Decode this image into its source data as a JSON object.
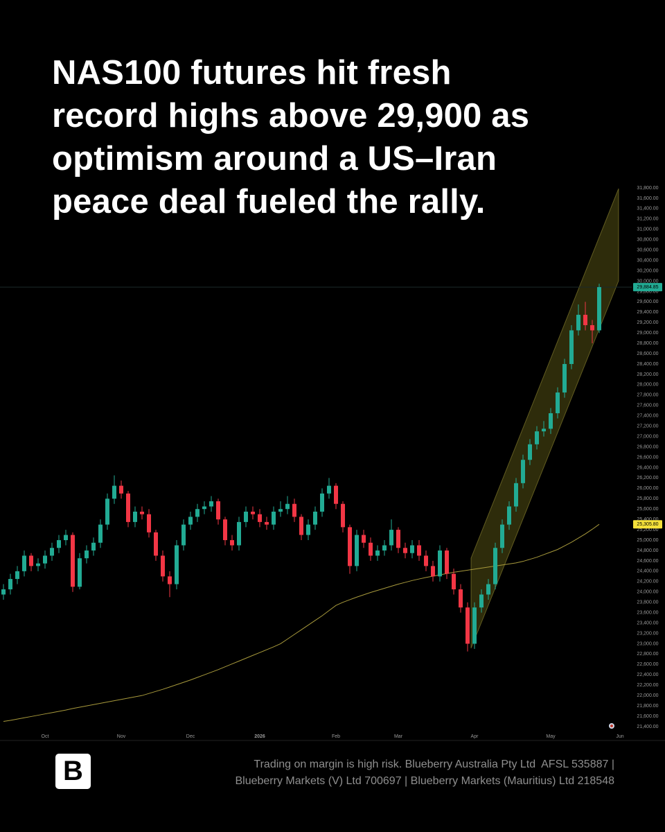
{
  "chart_data": {
    "type": "candlestick",
    "title": [
      "NAS100 futures hit fresh",
      "record highs above 29,900 as",
      "optimism around a US–Iran",
      "peace deal fueled the rally."
    ],
    "categories": [
      null,
      null,
      null,
      null,
      null,
      null,
      "Oct",
      null,
      null,
      null,
      null,
      null,
      null,
      null,
      null,
      null,
      null,
      "Nov",
      null,
      null,
      null,
      null,
      null,
      null,
      null,
      null,
      null,
      "Dec",
      null,
      null,
      null,
      null,
      null,
      null,
      null,
      null,
      null,
      "2026",
      null,
      null,
      null,
      null,
      null,
      null,
      null,
      null,
      null,
      null,
      "Feb",
      null,
      null,
      null,
      null,
      null,
      null,
      null,
      null,
      "Mar",
      null,
      null,
      null,
      null,
      null,
      null,
      null,
      null,
      null,
      null,
      "Apr",
      null,
      null,
      null,
      null,
      null,
      null,
      null,
      null,
      null,
      null,
      "May",
      null,
      null,
      null,
      null,
      null,
      null,
      null,
      null,
      null,
      "Jun"
    ],
    "series": [
      {
        "up_color": "#22ab94",
        "down_color": "#f23645",
        "open": [
          23950,
          24050,
          24250,
          24400,
          24700,
          24500,
          24550,
          24700,
          24850,
          25000,
          25100,
          24100,
          24650,
          24800,
          24950,
          25300,
          25800,
          26050,
          25900,
          25350,
          25550,
          25500,
          25150,
          24700,
          24300,
          24150,
          24900,
          25300,
          25450,
          25600,
          25650,
          25750,
          25400,
          25000,
          24900,
          25350,
          25550,
          25500,
          25350,
          25300,
          25550,
          25600,
          25700,
          25450,
          25100,
          25300,
          25550,
          25900,
          26050,
          25700,
          25250,
          24500,
          25100,
          24950,
          24700,
          24800,
          24900,
          25200,
          24850,
          24750,
          24900,
          24700,
          24500,
          24300,
          24800,
          24350,
          24050,
          23700,
          23000,
          23700,
          23950,
          24150,
          24850,
          25300,
          25650,
          26100,
          26550,
          26850,
          27100,
          27150,
          27450,
          27850,
          28400,
          29050,
          29350,
          29150,
          29050,
          null,
          null,
          null
        ],
        "high": [
          24150,
          24350,
          24500,
          24800,
          24750,
          24650,
          24800,
          24950,
          25100,
          25200,
          25150,
          24750,
          24900,
          25050,
          25400,
          25900,
          26250,
          26150,
          25950,
          25650,
          25650,
          25600,
          25200,
          24800,
          24400,
          25000,
          25400,
          25550,
          25700,
          25750,
          25850,
          25800,
          25450,
          25100,
          25450,
          25650,
          25650,
          25600,
          25450,
          25650,
          25750,
          25850,
          25800,
          25500,
          25400,
          25650,
          26000,
          26200,
          26100,
          25750,
          25300,
          25200,
          25200,
          25050,
          24900,
          25000,
          25400,
          25250,
          24950,
          25000,
          25000,
          24800,
          24600,
          24900,
          24850,
          24450,
          24150,
          23800,
          23800,
          24050,
          24250,
          24950,
          25400,
          25750,
          26200,
          26650,
          26950,
          27200,
          27300,
          27550,
          27950,
          28500,
          29150,
          29550,
          29600,
          29250,
          29950,
          null,
          null,
          null
        ],
        "low": [
          23850,
          23950,
          24150,
          24300,
          24400,
          24400,
          24450,
          24600,
          24750,
          24900,
          24000,
          24050,
          24550,
          24700,
          24850,
          25200,
          25700,
          25800,
          25250,
          25250,
          25400,
          25050,
          24600,
          24200,
          23900,
          24050,
          24800,
          25200,
          25350,
          25500,
          25550,
          25300,
          24900,
          24800,
          24800,
          25250,
          25400,
          25250,
          25200,
          25200,
          25450,
          25500,
          25350,
          25000,
          25000,
          25200,
          25450,
          25800,
          25600,
          25150,
          24350,
          24400,
          24850,
          24600,
          24600,
          24700,
          24800,
          24750,
          24650,
          24650,
          24600,
          24400,
          24200,
          24200,
          24250,
          23950,
          23600,
          22850,
          22900,
          23600,
          23850,
          24050,
          24750,
          25200,
          25550,
          26000,
          26450,
          26750,
          27000,
          27050,
          27350,
          27750,
          28300,
          28950,
          29050,
          28800,
          29000,
          null,
          null,
          null
        ],
        "close": [
          24050,
          24250,
          24400,
          24700,
          24500,
          24550,
          24700,
          24850,
          25000,
          25100,
          24100,
          24650,
          24800,
          24950,
          25300,
          25800,
          26050,
          25900,
          25350,
          25550,
          25500,
          25150,
          24700,
          24300,
          24150,
          24900,
          25300,
          25450,
          25600,
          25650,
          25750,
          25400,
          25000,
          24900,
          25350,
          25550,
          25500,
          25350,
          25300,
          25550,
          25600,
          25700,
          25450,
          25100,
          25300,
          25550,
          25900,
          26050,
          25700,
          25250,
          24500,
          25100,
          24950,
          24700,
          24800,
          24900,
          25200,
          24850,
          24750,
          24900,
          24700,
          24500,
          24300,
          24800,
          24350,
          24050,
          23700,
          23000,
          23700,
          23950,
          24150,
          24850,
          25300,
          25650,
          26100,
          26550,
          26850,
          27100,
          27150,
          27450,
          27850,
          28400,
          29050,
          29350,
          29150,
          29050,
          29884.85,
          null,
          null,
          null
        ]
      }
    ],
    "close_label": "29,884.85",
    "moving_average": {
      "color": "#a89a3c",
      "label_color": "#f5e13a",
      "values": [
        21500,
        21520,
        21545,
        21570,
        21595,
        21620,
        21645,
        21670,
        21695,
        21720,
        21750,
        21775,
        21800,
        21825,
        21850,
        21875,
        21900,
        21925,
        21950,
        21975,
        22000,
        22040,
        22080,
        22120,
        22165,
        22210,
        22255,
        22300,
        22350,
        22400,
        22450,
        22500,
        22555,
        22610,
        22665,
        22720,
        22775,
        22830,
        22885,
        22940,
        23000,
        23090,
        23180,
        23270,
        23360,
        23450,
        23540,
        23640,
        23740,
        23800,
        23850,
        23900,
        23945,
        23990,
        24030,
        24070,
        24110,
        24150,
        24185,
        24220,
        24250,
        24280,
        24305,
        24330,
        24355,
        24380,
        24400,
        24420,
        24440,
        24460,
        24480,
        24500,
        24520,
        24540,
        24560,
        24590,
        24630,
        24670,
        24720,
        24770,
        24820,
        24890,
        24960,
        25040,
        25120,
        25210,
        25305.8,
        null,
        null,
        null
      ],
      "value_label": "25,305.80"
    },
    "ylim": [
      21400,
      31800
    ],
    "yticks": [
      {
        "value": 21400,
        "label": "21,400.00"
      },
      {
        "value": 21600,
        "label": "21,600.00"
      },
      {
        "value": 21800,
        "label": "21,800.00"
      },
      {
        "value": 22000,
        "label": "22,000.00"
      },
      {
        "value": 22200,
        "label": "22,200.00"
      },
      {
        "value": 22400,
        "label": "22,400.00"
      },
      {
        "value": 22600,
        "label": "22,600.00"
      },
      {
        "value": 22800,
        "label": "22,800.00"
      },
      {
        "value": 23000,
        "label": "23,000.00"
      },
      {
        "value": 23200,
        "label": "23,200.00"
      },
      {
        "value": 23400,
        "label": "23,400.00"
      },
      {
        "value": 23600,
        "label": "23,600.00"
      },
      {
        "value": 23800,
        "label": "23,800.00"
      },
      {
        "value": 24000,
        "label": "24,000.00"
      },
      {
        "value": 24200,
        "label": "24,200.00"
      },
      {
        "value": 24400,
        "label": "24,400.00"
      },
      {
        "value": 24600,
        "label": "24,600.00"
      },
      {
        "value": 24800,
        "label": "24,800.00"
      },
      {
        "value": 25000,
        "label": "25,000.00"
      },
      {
        "value": 25200,
        "label": "25,200.00"
      },
      {
        "value": 25400,
        "label": "25,400.00"
      },
      {
        "value": 25600,
        "label": "25,600.00"
      },
      {
        "value": 25800,
        "label": "25,800.00"
      },
      {
        "value": 26000,
        "label": "26,000.00"
      },
      {
        "value": 26200,
        "label": "26,200.00"
      },
      {
        "value": 26400,
        "label": "26,400.00"
      },
      {
        "value": 26600,
        "label": "26,600.00"
      },
      {
        "value": 26800,
        "label": "26,800.00"
      },
      {
        "value": 27000,
        "label": "27,000.00"
      },
      {
        "value": 27200,
        "label": "27,200.00"
      },
      {
        "value": 27400,
        "label": "27,400.00"
      },
      {
        "value": 27600,
        "label": "27,600.00"
      },
      {
        "value": 27800,
        "label": "27,800.00"
      },
      {
        "value": 28000,
        "label": "28,000.00"
      },
      {
        "value": 28200,
        "label": "28,200.00"
      },
      {
        "value": 28400,
        "label": "28,400.00"
      },
      {
        "value": 28600,
        "label": "28,600.00"
      },
      {
        "value": 28800,
        "label": "28,800.00"
      },
      {
        "value": 29000,
        "label": "29,000.00"
      },
      {
        "value": 29200,
        "label": "29,200.00"
      },
      {
        "value": 29400,
        "label": "29,400.00"
      },
      {
        "value": 29600,
        "label": "29,600.00"
      },
      {
        "value": 29800,
        "label": "29,800.00"
      },
      {
        "value": 30000,
        "label": "30,000.00"
      },
      {
        "value": 30200,
        "label": "30,200.00"
      },
      {
        "value": 30400,
        "label": "30,400.00"
      },
      {
        "value": 30600,
        "label": "30,600.00"
      },
      {
        "value": 30800,
        "label": "30,800.00"
      },
      {
        "value": 31000,
        "label": "31,000.00"
      },
      {
        "value": 31200,
        "label": "31,200.00"
      },
      {
        "value": 31400,
        "label": "31,400.00"
      },
      {
        "value": 31600,
        "label": "31,600.00"
      },
      {
        "value": 31800,
        "label": "31,800.00"
      }
    ],
    "grid": false
  },
  "footer": {
    "logo": "B",
    "disclaimer": [
      "Trading on margin is high risk. Blueberry Australia Pty Ltd  AFSL 535887 |",
      "Blueberry Markets (V) Ltd 700697 | Blueberry Markets (Mauritius) Ltd 218548"
    ]
  }
}
